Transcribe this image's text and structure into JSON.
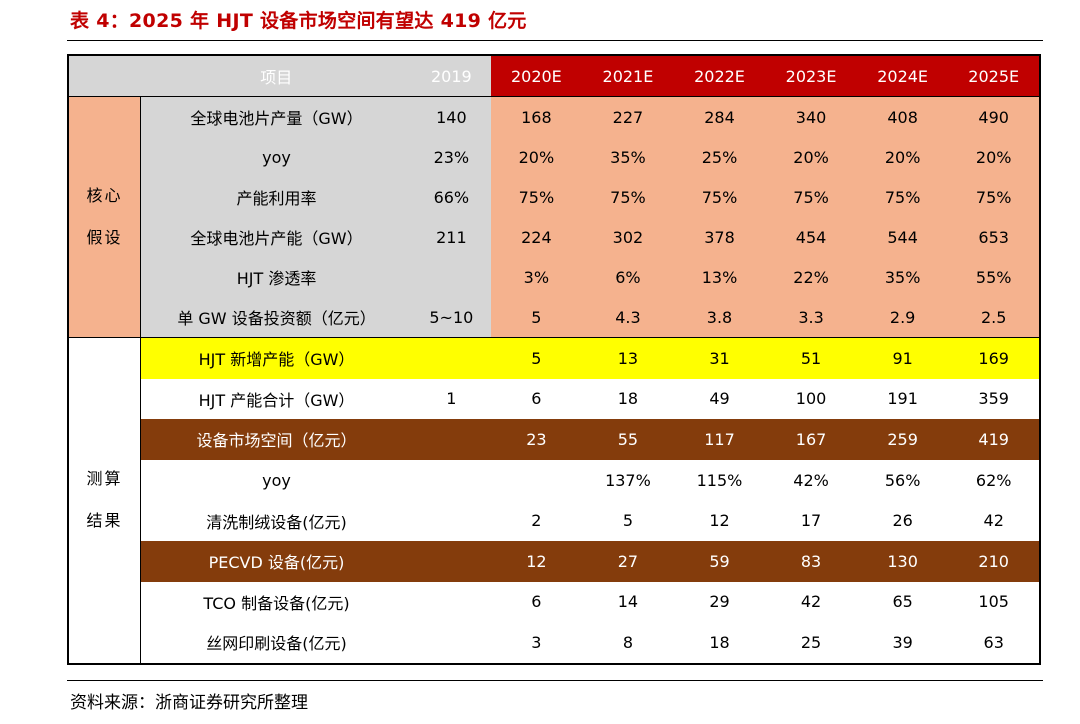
{
  "title": "表 4：2025 年 HJT 设备市场空间有望达 419 亿元",
  "source": "资料来源：浙商证券研究所整理",
  "colors": {
    "title": "#c00000",
    "header_gray": "#d6d6d6",
    "header_red": "#c00000",
    "core_peach": "#f5b28e",
    "highlight_yellow": "#ffff00",
    "highlight_brown": "#843c0c"
  },
  "table": {
    "header": {
      "item": "项目",
      "years": [
        "2019",
        "2020E",
        "2021E",
        "2022E",
        "2023E",
        "2024E",
        "2025E"
      ]
    },
    "core_section": {
      "label_line1": "核心",
      "label_line2": "假设",
      "rows": [
        {
          "label": "全球电池片产量（GW）",
          "values": [
            "140",
            "168",
            "227",
            "284",
            "340",
            "408",
            "490"
          ]
        },
        {
          "label": "yoy",
          "values": [
            "23%",
            "20%",
            "35%",
            "25%",
            "20%",
            "20%",
            "20%"
          ]
        },
        {
          "label": "产能利用率",
          "values": [
            "66%",
            "75%",
            "75%",
            "75%",
            "75%",
            "75%",
            "75%"
          ]
        },
        {
          "label": "全球电池片产能（GW）",
          "values": [
            "211",
            "224",
            "302",
            "378",
            "454",
            "544",
            "653"
          ]
        },
        {
          "label": "HJT 渗透率",
          "values": [
            "",
            "3%",
            "6%",
            "13%",
            "22%",
            "35%",
            "55%"
          ]
        },
        {
          "label": "单 GW 设备投资额（亿元）",
          "values": [
            "5~10",
            "5",
            "4.3",
            "3.8",
            "3.3",
            "2.9",
            "2.5"
          ]
        }
      ]
    },
    "measure_section": {
      "label_line1": "测算",
      "label_line2": "结果",
      "rows": [
        {
          "label": "HJT 新增产能（GW）",
          "style": "yellow",
          "values": [
            "",
            "5",
            "13",
            "31",
            "51",
            "91",
            "169"
          ]
        },
        {
          "label": "HJT 产能合计（GW）",
          "style": "white",
          "values": [
            "1",
            "6",
            "18",
            "49",
            "100",
            "191",
            "359"
          ]
        },
        {
          "label": "设备市场空间（亿元）",
          "style": "brown",
          "values": [
            "",
            "23",
            "55",
            "117",
            "167",
            "259",
            "419"
          ]
        },
        {
          "label": "yoy",
          "style": "white",
          "values": [
            "",
            "",
            "137%",
            "115%",
            "42%",
            "56%",
            "62%"
          ]
        },
        {
          "label": "清洗制绒设备(亿元)",
          "style": "white",
          "values": [
            "",
            "2",
            "5",
            "12",
            "17",
            "26",
            "42"
          ]
        },
        {
          "label": "PECVD 设备(亿元)",
          "style": "brown",
          "values": [
            "",
            "12",
            "27",
            "59",
            "83",
            "130",
            "210"
          ]
        },
        {
          "label": "TCO 制备设备(亿元)",
          "style": "white",
          "values": [
            "",
            "6",
            "14",
            "29",
            "42",
            "65",
            "105"
          ]
        },
        {
          "label": "丝网印刷设备(亿元)",
          "style": "white",
          "values": [
            "",
            "3",
            "8",
            "18",
            "25",
            "39",
            "63"
          ]
        }
      ]
    }
  }
}
